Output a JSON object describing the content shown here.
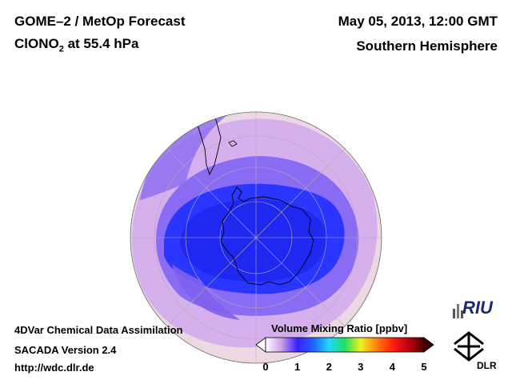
{
  "header": {
    "title_line1": "GOME–2 / MetOp Forecast",
    "title_line2_prefix": "ClONO",
    "title_line2_sub": "2",
    "title_line2_suffix": " at 55.4 hPa",
    "datetime": "May 05, 2013, 12:00 GMT",
    "hemisphere": "Southern Hemisphere"
  },
  "footer": {
    "line1": "4DVar Chemical Data Assimilation",
    "line2": "SACADA Version 2.4",
    "line3": "http://wdc.dlr.de"
  },
  "colorbar": {
    "label": "Volume Mixing Ratio [ppbv]",
    "ticks": [
      "0",
      "1",
      "2",
      "3",
      "4",
      "5"
    ],
    "min": 0,
    "max": 5,
    "colors": [
      "#ffffff",
      "#c8a0e8",
      "#3a20ff",
      "#2060ff",
      "#20d8ff",
      "#20e060",
      "#f0f020",
      "#ff8010",
      "#ff2010",
      "#c00010",
      "#500000"
    ]
  },
  "logos": {
    "riu": "RIU",
    "dlr": "DLR"
  },
  "map": {
    "projection": "orthographic",
    "center": "South Pole",
    "ocean_color": "#f2e2e8",
    "vortex_color": "#2030ff",
    "ring_color": "#9a70f0"
  }
}
